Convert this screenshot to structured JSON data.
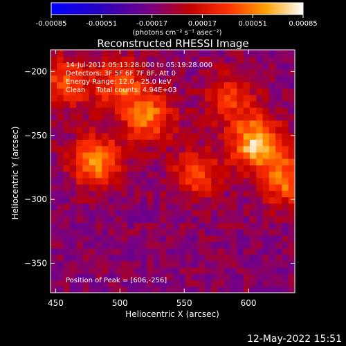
{
  "chart_data": {
    "type": "heatmap",
    "title": "Reconstructed RHESSI Image",
    "xlabel": "Heliocentric X (arcsec)",
    "ylabel": "Heliocentric Y (arcsec)",
    "xlim": [
      446,
      636
    ],
    "ylim": [
      -373,
      -183
    ],
    "x_ticks": [
      450,
      500,
      550,
      600
    ],
    "y_ticks": [
      -200,
      -250,
      -300,
      -350
    ],
    "colorbar": {
      "range": [
        -0.00085,
        0.00085
      ],
      "ticks": [
        -0.00085,
        -0.00051,
        -0.00017,
        0.00017,
        0.00051,
        0.00085
      ],
      "tick_labels": [
        "-0.00085",
        "-0.00051",
        "-0.00017",
        "0.00017",
        "0.00051",
        "0.00085"
      ],
      "unit_label": "(photons cm⁻² s⁻¹ asec⁻²)",
      "colormap": "RHESSI rainbow (blue-violet-red-orange-yellow-white)"
    },
    "annotations": [
      "14-Jul-2012 05:13:28.000 to 05:19:28.000",
      "Detectors: 3F 5F 6F 7F 8F, Att 0",
      "Energy Range: 12.0 - 25.0 keV",
      "Clean     Total counts: 4.94E+03"
    ],
    "peak_label": "Position of Peak = [606,-256]",
    "peak": {
      "x": 606,
      "y": -256
    },
    "sources": [
      {
        "x": 606,
        "y": -256,
        "value": 0.00085
      },
      {
        "x": 482,
        "y": -270,
        "value": 0.0007
      },
      {
        "x": 522,
        "y": -235,
        "value": 0.0006
      },
      {
        "x": 500,
        "y": -210,
        "value": 0.0005
      },
      {
        "x": 458,
        "y": -208,
        "value": 0.0005
      },
      {
        "x": 560,
        "y": -280,
        "value": 0.00045
      },
      {
        "x": 630,
        "y": -285,
        "value": 0.0006
      },
      {
        "x": 585,
        "y": -220,
        "value": 0.00045
      }
    ],
    "grid": false
  },
  "timestamp": "12-May-2022 15:51"
}
